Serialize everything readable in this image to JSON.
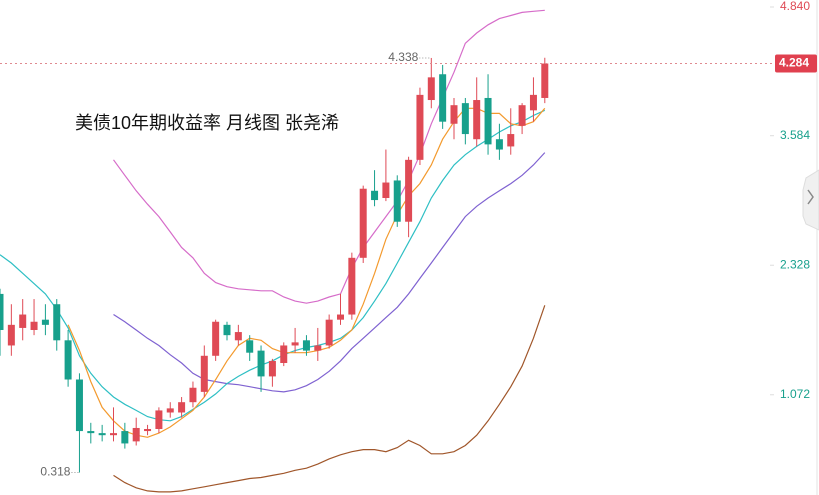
{
  "chart_data": {
    "type": "candlestick",
    "title": "美债10年期收益率  月线图  张尧浠",
    "ylim": [
      0.1,
      4.9
    ],
    "yticks": [
      {
        "value": 4.84,
        "label": "4.840"
      },
      3.584,
      2.328,
      1.072
    ],
    "up_color": "#df4a55",
    "down_color": "#17a08c",
    "open": [
      2.05,
      1.55,
      1.72,
      1.7,
      1.8,
      1.95,
      1.6,
      1.22,
      0.72,
      0.7,
      0.68,
      0.72,
      0.62,
      0.72,
      0.74,
      0.9,
      0.9,
      1.0,
      1.1,
      1.45,
      1.75,
      1.6,
      1.6,
      1.5,
      1.25,
      1.38,
      1.55,
      1.6,
      1.5,
      1.55,
      1.8,
      1.85,
      2.4,
      3.05,
      2.98,
      3.15,
      2.75,
      3.35,
      3.93,
      4.18,
      3.7,
      3.9,
      3.55,
      3.95,
      3.55,
      3.48,
      3.68,
      3.83,
      3.95
    ],
    "high": [
      2.1,
      1.95,
      2.0,
      2.0,
      1.95,
      2.0,
      1.7,
      1.28,
      0.8,
      0.78,
      0.95,
      0.8,
      0.85,
      0.78,
      0.95,
      1.0,
      1.05,
      1.2,
      1.55,
      1.8,
      1.78,
      1.75,
      1.65,
      1.55,
      1.42,
      1.58,
      1.72,
      1.65,
      1.72,
      1.85,
      2.05,
      2.45,
      3.1,
      3.25,
      3.45,
      3.2,
      3.38,
      4.05,
      4.338,
      4.27,
      3.95,
      3.95,
      4.15,
      4.18,
      3.7,
      3.85,
      3.9,
      4.15,
      4.34
    ],
    "low": [
      1.45,
      1.45,
      1.6,
      1.65,
      1.65,
      1.5,
      1.15,
      0.318,
      0.6,
      0.62,
      0.62,
      0.55,
      0.58,
      0.68,
      0.7,
      0.85,
      0.85,
      0.95,
      1.05,
      1.4,
      1.6,
      1.55,
      1.4,
      1.1,
      1.15,
      1.35,
      1.48,
      1.45,
      1.4,
      1.52,
      1.75,
      1.8,
      2.35,
      2.9,
      2.95,
      2.7,
      2.6,
      3.3,
      3.85,
      3.65,
      3.55,
      3.5,
      3.48,
      3.4,
      3.35,
      3.4,
      3.6,
      3.72,
      3.9
    ],
    "close": [
      1.7,
      1.75,
      1.85,
      1.78,
      1.75,
      1.6,
      1.22,
      0.72,
      0.7,
      0.68,
      0.7,
      0.6,
      0.75,
      0.74,
      0.92,
      0.94,
      1.0,
      1.14,
      1.45,
      1.78,
      1.65,
      1.68,
      1.48,
      1.25,
      1.4,
      1.55,
      1.58,
      1.5,
      1.55,
      1.8,
      1.85,
      2.4,
      3.07,
      2.96,
      3.13,
      2.75,
      3.35,
      3.98,
      4.15,
      3.72,
      3.88,
      3.6,
      3.93,
      3.5,
      3.45,
      3.6,
      3.88,
      3.98,
      4.284
    ],
    "series": [
      {
        "color": "#d66cc9",
        "values": [
          null,
          null,
          null,
          null,
          null,
          null,
          null,
          null,
          null,
          null,
          3.35,
          3.2,
          3.05,
          2.92,
          2.8,
          2.65,
          2.5,
          2.4,
          2.25,
          2.16,
          2.12,
          2.1,
          2.09,
          2.08,
          2.08,
          2.02,
          1.98,
          1.96,
          1.98,
          2.02,
          2.05,
          2.3,
          2.5,
          2.65,
          2.8,
          2.95,
          3.15,
          3.4,
          3.7,
          3.95,
          4.2,
          4.48,
          4.58,
          4.66,
          4.72,
          4.75,
          4.78,
          4.79,
          4.8
        ]
      },
      {
        "color": "#7f62d1",
        "values": [
          null,
          null,
          null,
          null,
          null,
          null,
          null,
          null,
          null,
          null,
          1.85,
          1.78,
          1.7,
          1.62,
          1.55,
          1.46,
          1.38,
          1.28,
          1.22,
          1.2,
          1.18,
          1.17,
          1.15,
          1.13,
          1.11,
          1.1,
          1.12,
          1.16,
          1.22,
          1.3,
          1.4,
          1.52,
          1.62,
          1.72,
          1.82,
          1.92,
          2.05,
          2.2,
          2.35,
          2.5,
          2.65,
          2.8,
          2.9,
          2.98,
          3.05,
          3.12,
          3.2,
          3.3,
          3.42
        ]
      },
      {
        "color": "#a0562a",
        "values": [
          null,
          null,
          null,
          null,
          null,
          null,
          null,
          null,
          null,
          null,
          0.29,
          0.22,
          0.17,
          0.14,
          0.13,
          0.13,
          0.14,
          0.16,
          0.18,
          0.2,
          0.22,
          0.24,
          0.26,
          0.27,
          0.29,
          0.31,
          0.34,
          0.36,
          0.4,
          0.45,
          0.49,
          0.52,
          0.54,
          0.54,
          0.52,
          0.56,
          0.63,
          0.58,
          0.5,
          0.5,
          0.52,
          0.58,
          0.68,
          0.82,
          0.98,
          1.15,
          1.35,
          1.62,
          1.94
        ]
      },
      {
        "color": "#2ebfc4",
        "values": [
          2.43,
          2.35,
          2.25,
          2.15,
          2.05,
          1.9,
          1.72,
          1.45,
          1.28,
          1.15,
          1.05,
          0.98,
          0.92,
          0.86,
          0.83,
          0.82,
          0.86,
          0.93,
          1.0,
          1.08,
          1.18,
          1.25,
          1.31,
          1.36,
          1.4,
          1.46,
          1.5,
          1.53,
          1.55,
          1.58,
          1.62,
          1.7,
          1.82,
          1.98,
          2.15,
          2.35,
          2.55,
          2.75,
          2.98,
          3.15,
          3.3,
          3.4,
          3.48,
          3.55,
          3.62,
          3.68,
          3.72,
          3.78,
          3.83
        ]
      },
      {
        "color": "#f39a2e",
        "values": [
          null,
          null,
          null,
          null,
          null,
          null,
          1.75,
          1.5,
          1.2,
          0.95,
          0.82,
          0.72,
          0.68,
          0.66,
          0.7,
          0.76,
          0.84,
          0.92,
          1.05,
          1.22,
          1.4,
          1.55,
          1.62,
          1.6,
          1.52,
          1.48,
          1.48,
          1.48,
          1.5,
          1.53,
          1.6,
          1.7,
          1.95,
          2.25,
          2.58,
          2.82,
          3.0,
          3.12,
          3.3,
          3.55,
          3.72,
          3.85,
          3.85,
          3.8,
          3.8,
          3.7,
          3.68,
          3.72,
          3.85
        ]
      }
    ],
    "annotations": {
      "high": 4.338,
      "low": 0.318,
      "last": 4.284
    }
  }
}
